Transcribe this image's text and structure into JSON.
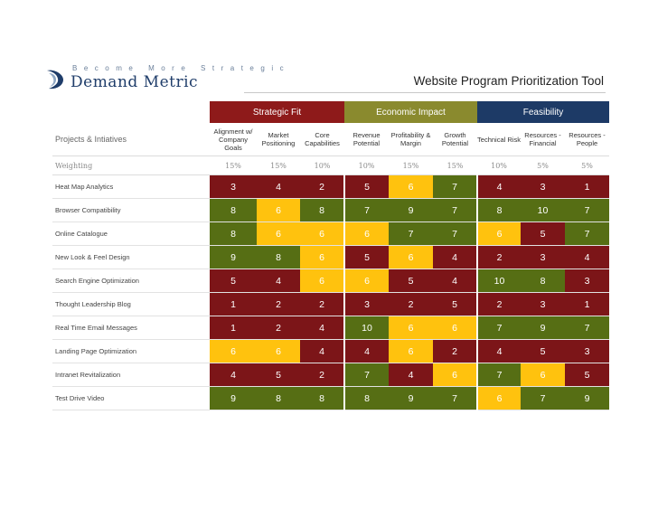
{
  "header": {
    "tagline": "Become More Strategic",
    "brand": "Demand Metric",
    "title": "Website Program Prioritization Tool"
  },
  "groups": [
    {
      "label": "Strategic Fit",
      "color": "#8e1a1a"
    },
    {
      "label": "Economic Impact",
      "color": "#8a8a2e"
    },
    {
      "label": "Feasibility",
      "color": "#1d3a66"
    }
  ],
  "columns": {
    "label": "Projects & Intiatives",
    "items": [
      "Alignment w/ Company Goals",
      "Market Positioning",
      "Core Capabilities",
      "Revenue Potential",
      "Profitability & Margin",
      "Growth Potential",
      "Technical Risk",
      "Resources - Financial",
      "Resources - People"
    ]
  },
  "weighting": {
    "label": "Weighting",
    "values": [
      "15%",
      "15%",
      "10%",
      "10%",
      "15%",
      "15%",
      "10%",
      "5%",
      "5%"
    ]
  },
  "rows": [
    {
      "name": "Heat Map Analytics",
      "scores": [
        "3",
        "4",
        "2",
        "5",
        "6",
        "7",
        "4",
        "3",
        "1"
      ]
    },
    {
      "name": "Browser Compatibility",
      "scores": [
        "8",
        "6",
        "8",
        "7",
        "9",
        "7",
        "8",
        "10",
        "7"
      ]
    },
    {
      "name": "Online Catalogue",
      "scores": [
        "8",
        "6",
        "6",
        "6",
        "7",
        "7",
        "6",
        "5",
        "7"
      ]
    },
    {
      "name": "New Look & Feel Design",
      "scores": [
        "9",
        "8",
        "6",
        "5",
        "6",
        "4",
        "2",
        "3",
        "4"
      ]
    },
    {
      "name": "Search Engine Optimization",
      "scores": [
        "5",
        "4",
        "6",
        "6",
        "5",
        "4",
        "10",
        "8",
        "3"
      ]
    },
    {
      "name": "Thought Leadership Blog",
      "scores": [
        "1",
        "2",
        "2",
        "3",
        "2",
        "5",
        "2",
        "3",
        "1"
      ]
    },
    {
      "name": "Real Time Email Messages",
      "scores": [
        "1",
        "2",
        "4",
        "10",
        "6",
        "6",
        "7",
        "9",
        "7"
      ]
    },
    {
      "name": "Landing Page Optimization",
      "scores": [
        "6",
        "6",
        "4",
        "4",
        "6",
        "2",
        "4",
        "5",
        "3"
      ]
    },
    {
      "name": "Intranet Revitalization",
      "scores": [
        "4",
        "5",
        "2",
        "7",
        "4",
        "6",
        "7",
        "6",
        "5"
      ]
    },
    {
      "name": "Test Drive Video",
      "scores": [
        "9",
        "8",
        "8",
        "8",
        "9",
        "7",
        "6",
        "7",
        "9"
      ]
    }
  ],
  "cell_colors": {
    "red": "#7c1518",
    "yellow": "#ffc20e",
    "green": "#566e14"
  }
}
